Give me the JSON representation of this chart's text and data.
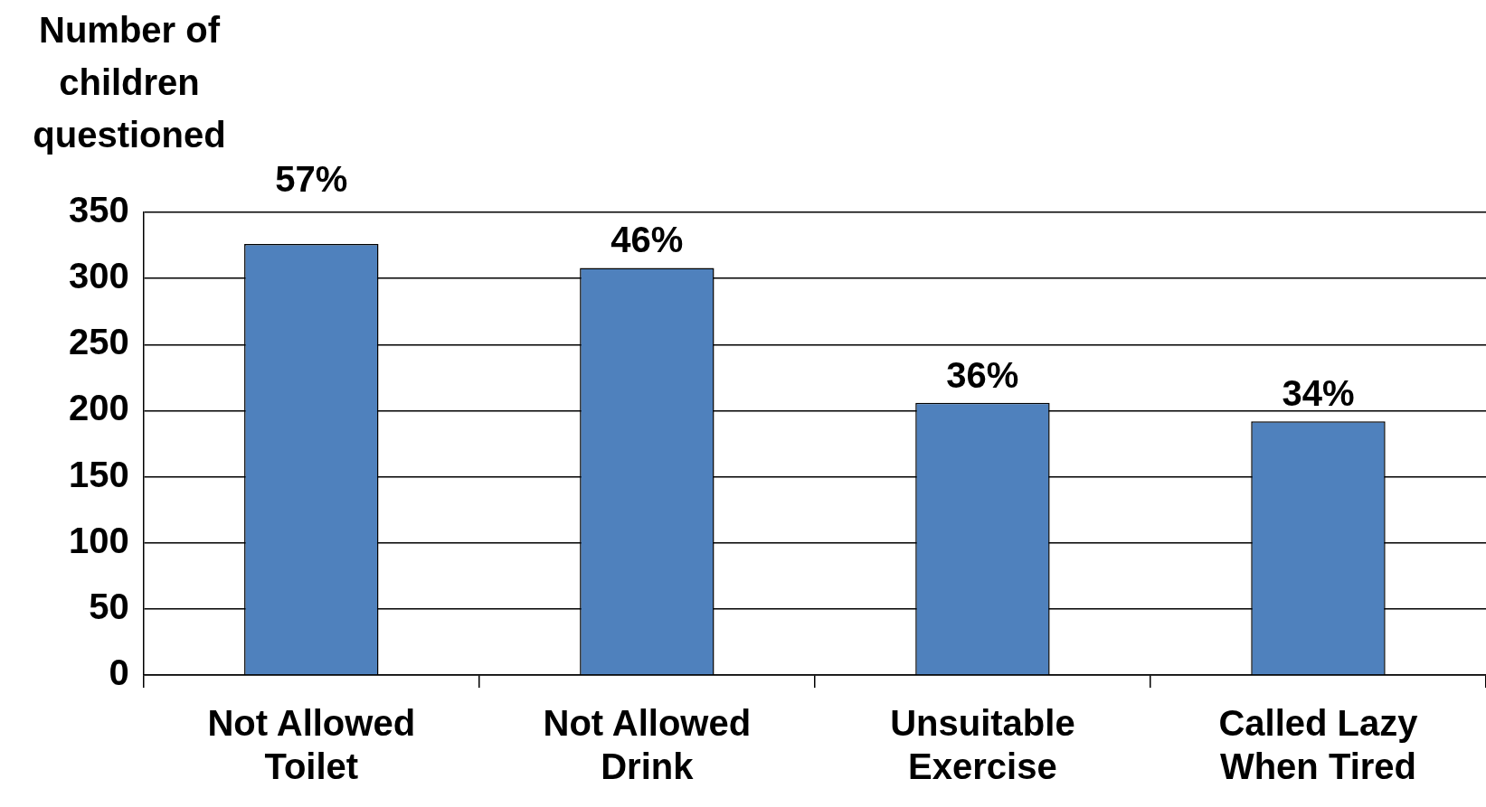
{
  "chart_data": {
    "type": "bar",
    "ylabel": "Number of children questioned",
    "categories": [
      "Not Allowed Toilet",
      "Not Allowed Drink",
      "Unsuitable Exercise",
      "Called Lazy When Tired"
    ],
    "values": [
      326,
      308,
      206,
      192
    ],
    "color": "#4f81bd",
    "annotations": [
      {
        "text": "57%",
        "x": "Not Allowed Toilet",
        "y": 326
      },
      {
        "text": "46%",
        "x": "Not Allowed Drink",
        "y": 308
      },
      {
        "text": "36%",
        "x": "Unsuitable Exercise",
        "y": 206
      },
      {
        "text": "34%",
        "x": "Called Lazy When Tired",
        "y": 192
      }
    ],
    "ylim": [
      0,
      350
    ],
    "yticks": [
      0,
      50,
      100,
      150,
      200,
      250,
      300,
      350
    ],
    "grid": "y",
    "legend": false
  }
}
